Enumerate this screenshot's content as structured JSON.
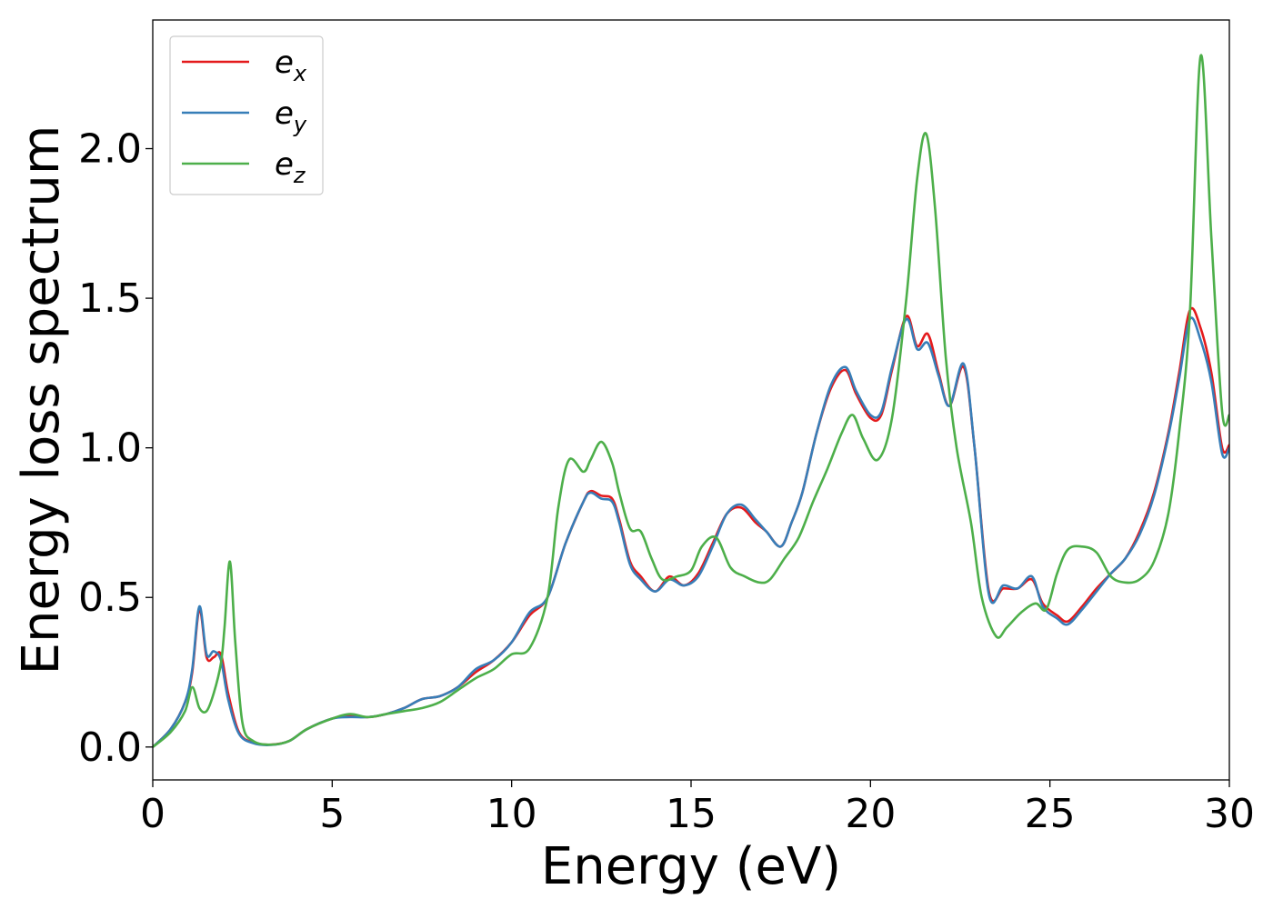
{
  "chart_data": {
    "type": "line",
    "xlabel": "Energy (eV)",
    "ylabel": "Energy loss spectrum",
    "xlim": [
      0,
      30
    ],
    "ylim": [
      -0.11,
      2.43
    ],
    "xticks": [
      "0",
      "5",
      "10",
      "15",
      "20",
      "25",
      "30"
    ],
    "yticks": [
      "0.0",
      "0.5",
      "1.0",
      "1.5",
      "2.0"
    ],
    "grid": false,
    "legend_position": "top-left",
    "series": [
      {
        "name": "e",
        "subscript": "x",
        "color": "#e41a1c",
        "x": [
          0,
          0.5,
          0.9,
          1.1,
          1.3,
          1.5,
          1.7,
          1.9,
          2.1,
          2.4,
          2.8,
          3.3,
          3.8,
          4.3,
          5.0,
          5.5,
          6.0,
          6.5,
          7.0,
          7.5,
          8.0,
          8.5,
          9.0,
          9.5,
          10.0,
          10.5,
          11.0,
          11.5,
          12.0,
          12.2,
          12.5,
          12.8,
          13.0,
          13.3,
          13.6,
          14.0,
          14.4,
          14.8,
          15.2,
          15.6,
          16.0,
          16.4,
          16.8,
          17.1,
          17.5,
          17.8,
          18.1,
          18.5,
          18.9,
          19.3,
          19.6,
          20.0,
          20.3,
          20.6,
          21.0,
          21.3,
          21.6,
          21.9,
          22.2,
          22.6,
          22.9,
          23.3,
          23.7,
          24.1,
          24.5,
          24.8,
          25.2,
          25.5,
          25.9,
          26.3,
          26.7,
          27.1,
          27.5,
          27.9,
          28.3,
          28.6,
          28.9,
          29.2,
          29.5,
          29.8,
          30.0
        ],
        "y": [
          0,
          0.06,
          0.15,
          0.25,
          0.46,
          0.3,
          0.3,
          0.31,
          0.18,
          0.05,
          0.015,
          0.008,
          0.02,
          0.06,
          0.095,
          0.105,
          0.1,
          0.11,
          0.13,
          0.16,
          0.17,
          0.2,
          0.25,
          0.29,
          0.35,
          0.44,
          0.5,
          0.68,
          0.82,
          0.855,
          0.84,
          0.83,
          0.76,
          0.62,
          0.57,
          0.52,
          0.57,
          0.54,
          0.58,
          0.68,
          0.78,
          0.8,
          0.75,
          0.72,
          0.67,
          0.75,
          0.85,
          1.05,
          1.2,
          1.26,
          1.18,
          1.1,
          1.11,
          1.26,
          1.44,
          1.34,
          1.38,
          1.25,
          1.14,
          1.27,
          1.0,
          0.52,
          0.53,
          0.53,
          0.56,
          0.48,
          0.44,
          0.42,
          0.47,
          0.53,
          0.58,
          0.63,
          0.72,
          0.85,
          1.05,
          1.25,
          1.46,
          1.4,
          1.25,
          1.0,
          1.01
        ]
      },
      {
        "name": "e",
        "subscript": "y",
        "color": "#377eb8",
        "x": [
          0,
          0.5,
          0.9,
          1.1,
          1.3,
          1.5,
          1.7,
          1.9,
          2.1,
          2.4,
          2.8,
          3.3,
          3.8,
          4.3,
          5.0,
          5.5,
          6.0,
          6.5,
          7.0,
          7.5,
          8.0,
          8.5,
          9.0,
          9.5,
          10.0,
          10.5,
          11.0,
          11.5,
          12.0,
          12.2,
          12.5,
          12.8,
          13.0,
          13.3,
          13.6,
          14.0,
          14.4,
          14.8,
          15.2,
          15.6,
          16.0,
          16.4,
          16.8,
          17.1,
          17.5,
          17.8,
          18.1,
          18.5,
          18.9,
          19.3,
          19.6,
          20.0,
          20.3,
          20.6,
          21.0,
          21.3,
          21.6,
          21.9,
          22.2,
          22.6,
          22.9,
          23.3,
          23.7,
          24.1,
          24.5,
          24.8,
          25.2,
          25.5,
          25.9,
          26.3,
          26.7,
          27.1,
          27.5,
          27.9,
          28.3,
          28.6,
          28.9,
          29.2,
          29.5,
          29.8,
          30.0
        ],
        "y": [
          0,
          0.06,
          0.15,
          0.26,
          0.47,
          0.31,
          0.32,
          0.29,
          0.16,
          0.045,
          0.013,
          0.007,
          0.02,
          0.06,
          0.095,
          0.1,
          0.1,
          0.11,
          0.13,
          0.16,
          0.17,
          0.2,
          0.26,
          0.29,
          0.35,
          0.45,
          0.5,
          0.68,
          0.82,
          0.85,
          0.83,
          0.82,
          0.75,
          0.61,
          0.56,
          0.52,
          0.56,
          0.54,
          0.57,
          0.67,
          0.78,
          0.81,
          0.76,
          0.72,
          0.67,
          0.75,
          0.85,
          1.05,
          1.21,
          1.27,
          1.19,
          1.11,
          1.12,
          1.27,
          1.43,
          1.33,
          1.35,
          1.24,
          1.14,
          1.28,
          1.0,
          0.51,
          0.54,
          0.53,
          0.57,
          0.47,
          0.43,
          0.41,
          0.46,
          0.52,
          0.58,
          0.63,
          0.71,
          0.84,
          1.04,
          1.23,
          1.43,
          1.36,
          1.22,
          0.98,
          1.0
        ]
      },
      {
        "name": "e",
        "subscript": "z",
        "color": "#4daf4a",
        "x": [
          0,
          0.5,
          0.9,
          1.1,
          1.3,
          1.5,
          1.7,
          1.9,
          2.0,
          2.15,
          2.3,
          2.5,
          2.8,
          3.3,
          3.8,
          4.3,
          5.0,
          5.5,
          6.0,
          6.5,
          7.0,
          7.5,
          8.0,
          8.5,
          9.0,
          9.5,
          10.0,
          10.5,
          11.0,
          11.3,
          11.6,
          12.0,
          12.2,
          12.5,
          12.8,
          13.0,
          13.3,
          13.6,
          13.9,
          14.2,
          14.6,
          15.0,
          15.3,
          15.7,
          16.1,
          16.5,
          16.9,
          17.2,
          17.6,
          18.0,
          18.4,
          18.8,
          19.2,
          19.5,
          19.8,
          20.2,
          20.6,
          21.0,
          21.3,
          21.55,
          21.8,
          22.1,
          22.4,
          22.8,
          23.1,
          23.5,
          23.8,
          24.2,
          24.6,
          24.9,
          25.2,
          25.5,
          25.9,
          26.3,
          26.7,
          27.1,
          27.5,
          27.9,
          28.3,
          28.6,
          28.9,
          29.2,
          29.5,
          29.8,
          30.0
        ],
        "y": [
          0,
          0.05,
          0.12,
          0.2,
          0.13,
          0.12,
          0.18,
          0.28,
          0.4,
          0.62,
          0.35,
          0.08,
          0.02,
          0.008,
          0.02,
          0.06,
          0.095,
          0.11,
          0.1,
          0.11,
          0.12,
          0.13,
          0.15,
          0.19,
          0.23,
          0.26,
          0.31,
          0.33,
          0.5,
          0.8,
          0.96,
          0.92,
          0.96,
          1.02,
          0.95,
          0.85,
          0.73,
          0.72,
          0.63,
          0.56,
          0.57,
          0.59,
          0.67,
          0.7,
          0.6,
          0.57,
          0.55,
          0.56,
          0.63,
          0.7,
          0.82,
          0.93,
          1.05,
          1.11,
          1.03,
          0.96,
          1.1,
          1.5,
          1.9,
          2.05,
          1.8,
          1.3,
          1.0,
          0.75,
          0.5,
          0.37,
          0.4,
          0.45,
          0.48,
          0.46,
          0.58,
          0.66,
          0.67,
          0.65,
          0.57,
          0.55,
          0.56,
          0.62,
          0.78,
          1.05,
          1.45,
          2.31,
          1.7,
          1.12,
          1.11
        ]
      }
    ]
  }
}
